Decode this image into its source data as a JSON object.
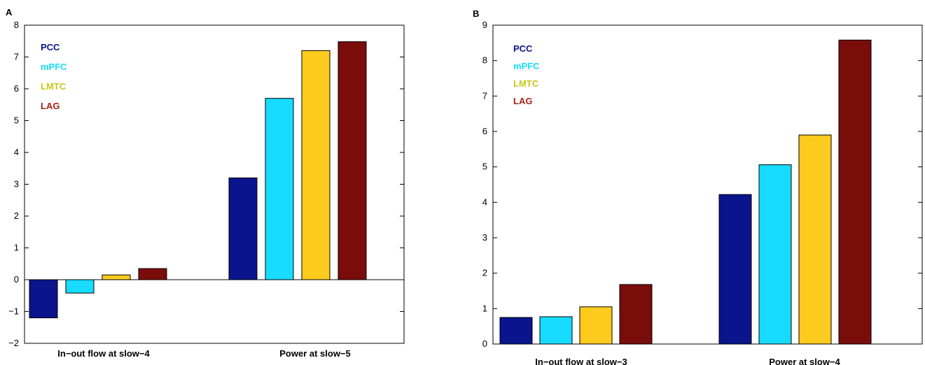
{
  "chart_data": [
    {
      "type": "bar",
      "panel_label": "A",
      "categories": [
        "In−out flow at slow−4",
        "Power at slow−5"
      ],
      "series": [
        {
          "name": "PCC",
          "color": "#0a148c",
          "values": [
            -1.2,
            3.2
          ]
        },
        {
          "name": "mPFC",
          "color": "#17dcff",
          "values": [
            -0.42,
            5.7
          ]
        },
        {
          "name": "LMTC",
          "color": "#c9c71a",
          "bar_color": "#fdca1e",
          "values": [
            0.15,
            7.2
          ]
        },
        {
          "name": "LAG",
          "color": "#a52218",
          "bar_color": "#7a0d0a",
          "values": [
            0.35,
            7.48
          ]
        }
      ],
      "ylim": [
        -2,
        8
      ],
      "yticks": [
        "−2",
        "−1",
        "0",
        "1",
        "2",
        "3",
        "4",
        "5",
        "6",
        "7",
        "8"
      ],
      "zero_line": true,
      "legend_position": "top-left"
    },
    {
      "type": "bar",
      "panel_label": "B",
      "categories": [
        "In−out flow at slow−3",
        "Power at slow−4"
      ],
      "series": [
        {
          "name": "PCC",
          "color": "#0a148c",
          "values": [
            0.75,
            4.22
          ]
        },
        {
          "name": "mPFC",
          "color": "#17dcff",
          "values": [
            0.77,
            5.06
          ]
        },
        {
          "name": "LMTC",
          "color": "#c9c71a",
          "bar_color": "#fdca1e",
          "values": [
            1.05,
            5.9
          ]
        },
        {
          "name": "LAG",
          "color": "#a52218",
          "bar_color": "#7a0d0a",
          "values": [
            1.68,
            8.58
          ]
        }
      ],
      "ylim": [
        0,
        9
      ],
      "yticks": [
        "0",
        "1",
        "2",
        "3",
        "4",
        "5",
        "6",
        "7",
        "8",
        "9"
      ],
      "zero_line": false,
      "legend_position": "top-left"
    }
  ]
}
